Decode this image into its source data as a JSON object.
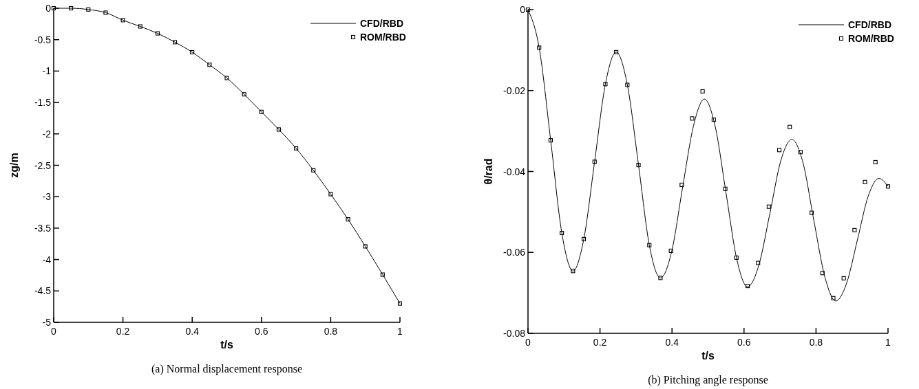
{
  "chart_data": [
    {
      "type": "line",
      "title": "(a) Normal displacement response",
      "xlabel": "t/s",
      "ylabel": "zg/m",
      "xlim": [
        0,
        1
      ],
      "xticks": [
        0,
        0.2,
        0.4,
        0.6,
        0.8,
        1
      ],
      "ylim": [
        -5,
        0
      ],
      "yticks": [
        -5,
        -4.5,
        -4,
        -3.5,
        -3,
        -2.5,
        -2,
        -1.5,
        -1,
        -0.5,
        0
      ],
      "legend": "top right",
      "grid": false,
      "series": [
        {
          "name": "CFD/RBD",
          "type": "line",
          "color": "#000000",
          "marker": "none",
          "x": [
            0,
            0.05,
            0.1,
            0.15,
            0.2,
            0.25,
            0.3,
            0.35,
            0.4,
            0.45,
            0.5,
            0.55,
            0.6,
            0.65,
            0.7,
            0.75,
            0.8,
            0.85,
            0.9,
            0.95,
            1
          ],
          "values": [
            0,
            0,
            -0.02,
            -0.07,
            -0.19,
            -0.29,
            -0.4,
            -0.54,
            -0.7,
            -0.9,
            -1.11,
            -1.37,
            -1.65,
            -1.93,
            -2.23,
            -2.58,
            -2.96,
            -3.36,
            -3.79,
            -4.24,
            -4.7
          ]
        },
        {
          "name": "ROM/RBD",
          "type": "scatter",
          "color": "#000000",
          "marker": "square",
          "x": [
            0,
            0.05,
            0.1,
            0.15,
            0.2,
            0.25,
            0.3,
            0.35,
            0.4,
            0.45,
            0.5,
            0.55,
            0.6,
            0.65,
            0.7,
            0.75,
            0.8,
            0.85,
            0.9,
            0.95,
            1
          ],
          "values": [
            0,
            0,
            -0.02,
            -0.07,
            -0.19,
            -0.29,
            -0.4,
            -0.54,
            -0.7,
            -0.9,
            -1.11,
            -1.37,
            -1.65,
            -1.93,
            -2.23,
            -2.58,
            -2.96,
            -3.36,
            -3.79,
            -4.24,
            -4.7
          ]
        }
      ]
    },
    {
      "type": "line",
      "title": "(b) Pitching angle response",
      "xlabel": "t/s",
      "ylabel": "θ/rad",
      "xlim": [
        0,
        1
      ],
      "xticks": [
        0,
        0.2,
        0.4,
        0.6,
        0.8,
        1
      ],
      "ylim": [
        -0.08,
        0
      ],
      "yticks": [
        -0.08,
        -0.06,
        -0.04,
        -0.02,
        0
      ],
      "legend": "top right",
      "grid": false,
      "series": [
        {
          "name": "CFD/RBD",
          "type": "line",
          "color": "#000000",
          "marker": "none",
          "x": [
            0,
            0.031,
            0.063,
            0.094,
            0.125,
            0.155,
            0.185,
            0.215,
            0.245,
            0.276,
            0.307,
            0.337,
            0.368,
            0.399,
            0.429,
            0.46,
            0.49,
            0.52,
            0.55,
            0.58,
            0.61,
            0.641,
            0.672,
            0.702,
            0.733,
            0.764,
            0.794,
            0.825,
            0.855,
            0.885,
            0.915,
            0.945,
            0.975,
            1
          ],
          "values": [
            0,
            -0.0094,
            -0.0323,
            -0.0552,
            -0.0646,
            -0.0567,
            -0.0376,
            -0.0184,
            -0.0105,
            -0.0186,
            -0.0384,
            -0.0582,
            -0.0663,
            -0.0598,
            -0.0442,
            -0.0286,
            -0.0221,
            -0.0289,
            -0.0453,
            -0.0617,
            -0.0685,
            -0.0632,
            -0.0503,
            -0.0374,
            -0.0321,
            -0.0379,
            -0.0521,
            -0.0662,
            -0.072,
            -0.0676,
            -0.0569,
            -0.0461,
            -0.0417,
            -0.0437
          ]
        },
        {
          "name": "ROM/RBD",
          "type": "scatter",
          "color": "#000000",
          "marker": "square",
          "x": [
            0,
            0.031,
            0.063,
            0.094,
            0.125,
            0.155,
            0.185,
            0.215,
            0.245,
            0.276,
            0.307,
            0.337,
            0.368,
            0.397,
            0.427,
            0.456,
            0.485,
            0.516,
            0.548,
            0.579,
            0.61,
            0.639,
            0.669,
            0.698,
            0.727,
            0.757,
            0.788,
            0.818,
            0.848,
            0.877,
            0.907,
            0.936,
            0.965,
            1
          ],
          "values": [
            0,
            -0.0094,
            -0.0323,
            -0.0552,
            -0.0646,
            -0.0567,
            -0.0376,
            -0.0184,
            -0.0105,
            -0.0186,
            -0.0384,
            -0.0582,
            -0.0663,
            -0.0596,
            -0.0433,
            -0.0269,
            -0.0202,
            -0.0272,
            -0.0443,
            -0.0613,
            -0.0683,
            -0.0626,
            -0.0487,
            -0.0347,
            -0.029,
            -0.0352,
            -0.0502,
            -0.0651,
            -0.0713,
            -0.0664,
            -0.0545,
            -0.0426,
            -0.0377,
            -0.0437
          ]
        }
      ]
    }
  ]
}
